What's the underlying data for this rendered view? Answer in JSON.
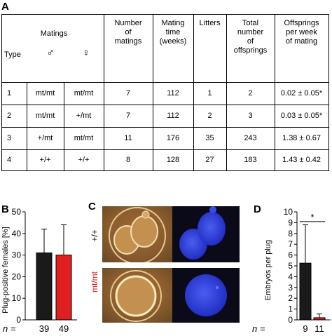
{
  "panel_a": {
    "letter": "A",
    "headers": {
      "matings": "Matings",
      "type": "Type",
      "male": "♂",
      "female": "♀",
      "number_of_matings": [
        "Number",
        "of",
        "matings"
      ],
      "mating_time": [
        "Mating",
        "time",
        "(weeks)"
      ],
      "litters": "Litters",
      "total_offsprings": [
        "Total",
        "number",
        "of",
        "offsprings"
      ],
      "offsprings_per_week": [
        "Offsprings",
        "per week",
        "of mating"
      ]
    },
    "rows": [
      {
        "type": "1",
        "male": "mt/mt",
        "female": "mt/mt",
        "matings": "7",
        "time": "112",
        "litters": "1",
        "total": "2",
        "per_week": "0.02 ± 0.05*"
      },
      {
        "type": "2",
        "male": "mt/mt",
        "female": "+/mt",
        "matings": "7",
        "time": "112",
        "litters": "2",
        "total": "3",
        "per_week": "0.03 ± 0.05*"
      },
      {
        "type": "3",
        "male": "+/mt",
        "female": "mt/mt",
        "matings": "11",
        "time": "176",
        "litters": "35",
        "total": "243",
        "per_week": "1.38 ± 0.67"
      },
      {
        "type": "4",
        "male": "+/+",
        "female": "+/+",
        "matings": "8",
        "time": "128",
        "litters": "27",
        "total": "183",
        "per_week": "1.43 ± 0.42"
      }
    ]
  },
  "panel_b": {
    "letter": "B",
    "n_label": "n =",
    "n_values": [
      "39",
      "49"
    ]
  },
  "panel_c": {
    "letter": "C",
    "labels": [
      "+/+",
      "mt/mt"
    ],
    "label_colors": [
      "#000000",
      "#d42020"
    ]
  },
  "panel_d": {
    "letter": "D",
    "n_label": "n =",
    "n_values": [
      "9",
      "11"
    ],
    "significance": "*"
  },
  "chart_data": [
    {
      "type": "bar",
      "panel": "B",
      "categories": [
        "39",
        "49"
      ],
      "values": [
        31,
        30
      ],
      "errors": [
        11,
        14
      ],
      "colors": [
        "#1a1a1a",
        "#e02020"
      ],
      "ylabel": "Plug-positive females [%]",
      "ylim": [
        0,
        50
      ],
      "yticks": [
        0,
        10,
        20,
        30,
        40,
        50
      ]
    },
    {
      "type": "bar",
      "panel": "D",
      "categories": [
        "9",
        "11"
      ],
      "values": [
        5.25,
        0.2
      ],
      "errors": [
        3.55,
        0.35
      ],
      "colors": [
        "#1a1a1a",
        "#e02020"
      ],
      "ylabel": "Embryos per plug",
      "ylim": [
        0,
        10
      ],
      "yticks": [
        0,
        1,
        2,
        3,
        4,
        5,
        6,
        7,
        8,
        9,
        10
      ]
    }
  ]
}
